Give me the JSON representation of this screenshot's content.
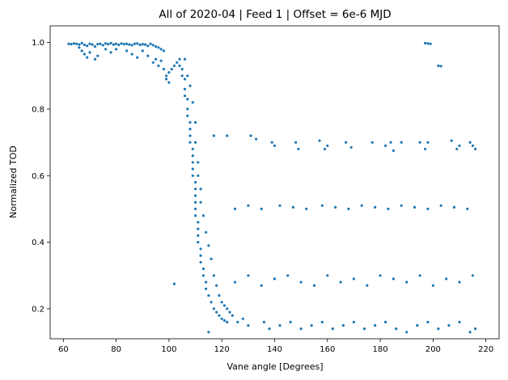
{
  "chart_data": {
    "type": "scatter",
    "title": "All of 2020-04 | Feed 1 | Offset = 6e-6 MJD",
    "xlabel": "Vane angle [Degrees]",
    "ylabel": "Normalized TOD",
    "xlim": [
      55,
      225
    ],
    "ylim": [
      0.11,
      1.05
    ],
    "xticks": [
      60,
      80,
      100,
      120,
      140,
      160,
      180,
      200,
      220
    ],
    "yticks": [
      0.2,
      0.4,
      0.6,
      0.8,
      1.0
    ],
    "xtick_labels": [
      "60",
      "80",
      "100",
      "120",
      "140",
      "160",
      "180",
      "200",
      "220"
    ],
    "ytick_labels": [
      "0.2",
      "0.4",
      "0.6",
      "0.8",
      "1.0"
    ],
    "grid": false,
    "color": "#1f77b4",
    "series": [
      {
        "points": [
          [
            62,
            0.996
          ],
          [
            63,
            0.995
          ],
          [
            64,
            0.997
          ],
          [
            65,
            0.996
          ],
          [
            66,
            0.994
          ],
          [
            67,
            0.998
          ],
          [
            68,
            0.993
          ],
          [
            69,
            0.99
          ],
          [
            70,
            0.996
          ],
          [
            71,
            0.994
          ],
          [
            72,
            0.988
          ],
          [
            73,
            0.995
          ],
          [
            74,
            0.996
          ],
          [
            75,
            0.992
          ],
          [
            76,
            0.997
          ],
          [
            77,
            0.995
          ],
          [
            78,
            0.998
          ],
          [
            79,
            0.994
          ],
          [
            80,
            0.996
          ],
          [
            81,
            0.993
          ],
          [
            82,
            0.997
          ],
          [
            83,
            0.995
          ],
          [
            84,
            0.996
          ],
          [
            85,
            0.994
          ],
          [
            86,
            0.992
          ],
          [
            87,
            0.996
          ],
          [
            88,
            0.997
          ],
          [
            89,
            0.993
          ],
          [
            90,
            0.995
          ],
          [
            91,
            0.994
          ],
          [
            92,
            0.99
          ],
          [
            93,
            0.996
          ],
          [
            94,
            0.992
          ],
          [
            95,
            0.988
          ],
          [
            96,
            0.985
          ],
          [
            97,
            0.98
          ],
          [
            98,
            0.975
          ],
          [
            66,
            0.985
          ],
          [
            67,
            0.975
          ],
          [
            68,
            0.965
          ],
          [
            69,
            0.955
          ],
          [
            70,
            0.97
          ],
          [
            72,
            0.95
          ],
          [
            73,
            0.96
          ],
          [
            76,
            0.98
          ],
          [
            78,
            0.97
          ],
          [
            80,
            0.98
          ],
          [
            84,
            0.975
          ],
          [
            86,
            0.965
          ],
          [
            88,
            0.955
          ],
          [
            90,
            0.975
          ],
          [
            92,
            0.96
          ],
          [
            94,
            0.94
          ],
          [
            95,
            0.95
          ],
          [
            96,
            0.93
          ],
          [
            97,
            0.945
          ],
          [
            98,
            0.92
          ],
          [
            99,
            0.9
          ],
          [
            100,
            0.91
          ],
          [
            99,
            0.89
          ],
          [
            100,
            0.88
          ],
          [
            101,
            0.92
          ],
          [
            102,
            0.93
          ],
          [
            103,
            0.94
          ],
          [
            104,
            0.95
          ],
          [
            104,
            0.93
          ],
          [
            105,
            0.92
          ],
          [
            105,
            0.9
          ],
          [
            106,
            0.89
          ],
          [
            106,
            0.86
          ],
          [
            106,
            0.84
          ],
          [
            107,
            0.83
          ],
          [
            107,
            0.8
          ],
          [
            107,
            0.78
          ],
          [
            108,
            0.76
          ],
          [
            108,
            0.74
          ],
          [
            108,
            0.72
          ],
          [
            108,
            0.7
          ],
          [
            109,
            0.68
          ],
          [
            109,
            0.66
          ],
          [
            109,
            0.64
          ],
          [
            109,
            0.62
          ],
          [
            109,
            0.6
          ],
          [
            110,
            0.58
          ],
          [
            110,
            0.56
          ],
          [
            110,
            0.54
          ],
          [
            110,
            0.52
          ],
          [
            110,
            0.5
          ],
          [
            110,
            0.48
          ],
          [
            111,
            0.46
          ],
          [
            111,
            0.44
          ],
          [
            111,
            0.42
          ],
          [
            111,
            0.4
          ],
          [
            112,
            0.38
          ],
          [
            112,
            0.36
          ],
          [
            112,
            0.34
          ],
          [
            113,
            0.32
          ],
          [
            113,
            0.3
          ],
          [
            114,
            0.28
          ],
          [
            114,
            0.26
          ],
          [
            115,
            0.24
          ],
          [
            116,
            0.22
          ],
          [
            117,
            0.2
          ],
          [
            118,
            0.19
          ],
          [
            119,
            0.18
          ],
          [
            120,
            0.17
          ],
          [
            121,
            0.165
          ],
          [
            122,
            0.16
          ],
          [
            106,
            0.95
          ],
          [
            107,
            0.9
          ],
          [
            108,
            0.87
          ],
          [
            109,
            0.82
          ],
          [
            110,
            0.76
          ],
          [
            110,
            0.7
          ],
          [
            111,
            0.64
          ],
          [
            111,
            0.6
          ],
          [
            112,
            0.56
          ],
          [
            112,
            0.52
          ],
          [
            113,
            0.48
          ],
          [
            114,
            0.43
          ],
          [
            115,
            0.39
          ],
          [
            116,
            0.35
          ],
          [
            117,
            0.3
          ],
          [
            118,
            0.27
          ],
          [
            119,
            0.24
          ],
          [
            120,
            0.22
          ],
          [
            121,
            0.21
          ],
          [
            122,
            0.2
          ],
          [
            123,
            0.19
          ],
          [
            124,
            0.18
          ],
          [
            102,
            0.275
          ],
          [
            115,
            0.13
          ],
          [
            117,
            0.72
          ],
          [
            122,
            0.72
          ],
          [
            131,
            0.72
          ],
          [
            133,
            0.71
          ],
          [
            139,
            0.7
          ],
          [
            140,
            0.69
          ],
          [
            148,
            0.7
          ],
          [
            149,
            0.68
          ],
          [
            157,
            0.705
          ],
          [
            159,
            0.68
          ],
          [
            160,
            0.69
          ],
          [
            167,
            0.7
          ],
          [
            169,
            0.685
          ],
          [
            177,
            0.7
          ],
          [
            182,
            0.69
          ],
          [
            184,
            0.7
          ],
          [
            185,
            0.675
          ],
          [
            188,
            0.7
          ],
          [
            195,
            0.7
          ],
          [
            197,
            0.68
          ],
          [
            198,
            0.7
          ],
          [
            207,
            0.705
          ],
          [
            209,
            0.68
          ],
          [
            210,
            0.69
          ],
          [
            214,
            0.7
          ],
          [
            215,
            0.69
          ],
          [
            216,
            0.68
          ],
          [
            197,
            0.998
          ],
          [
            198,
            0.997
          ],
          [
            199,
            0.996
          ],
          [
            202,
            0.93
          ],
          [
            203,
            0.929
          ],
          [
            125,
            0.5
          ],
          [
            130,
            0.51
          ],
          [
            135,
            0.5
          ],
          [
            142,
            0.51
          ],
          [
            147,
            0.505
          ],
          [
            152,
            0.5
          ],
          [
            158,
            0.51
          ],
          [
            163,
            0.505
          ],
          [
            168,
            0.5
          ],
          [
            173,
            0.51
          ],
          [
            178,
            0.505
          ],
          [
            183,
            0.5
          ],
          [
            188,
            0.51
          ],
          [
            193,
            0.505
          ],
          [
            198,
            0.5
          ],
          [
            203,
            0.51
          ],
          [
            208,
            0.505
          ],
          [
            213,
            0.5
          ],
          [
            125,
            0.28
          ],
          [
            130,
            0.3
          ],
          [
            135,
            0.27
          ],
          [
            140,
            0.29
          ],
          [
            145,
            0.3
          ],
          [
            150,
            0.28
          ],
          [
            155,
            0.27
          ],
          [
            160,
            0.3
          ],
          [
            165,
            0.28
          ],
          [
            170,
            0.29
          ],
          [
            175,
            0.27
          ],
          [
            180,
            0.3
          ],
          [
            185,
            0.29
          ],
          [
            190,
            0.28
          ],
          [
            195,
            0.3
          ],
          [
            200,
            0.27
          ],
          [
            205,
            0.29
          ],
          [
            210,
            0.28
          ],
          [
            215,
            0.3
          ],
          [
            126,
            0.16
          ],
          [
            128,
            0.17
          ],
          [
            130,
            0.15
          ],
          [
            136,
            0.16
          ],
          [
            138,
            0.14
          ],
          [
            142,
            0.15
          ],
          [
            146,
            0.16
          ],
          [
            150,
            0.14
          ],
          [
            154,
            0.15
          ],
          [
            158,
            0.16
          ],
          [
            162,
            0.14
          ],
          [
            166,
            0.15
          ],
          [
            170,
            0.16
          ],
          [
            174,
            0.14
          ],
          [
            178,
            0.15
          ],
          [
            182,
            0.16
          ],
          [
            186,
            0.14
          ],
          [
            190,
            0.13
          ],
          [
            194,
            0.15
          ],
          [
            198,
            0.16
          ],
          [
            202,
            0.14
          ],
          [
            206,
            0.15
          ],
          [
            210,
            0.16
          ],
          [
            214,
            0.13
          ],
          [
            216,
            0.14
          ]
        ]
      }
    ]
  }
}
